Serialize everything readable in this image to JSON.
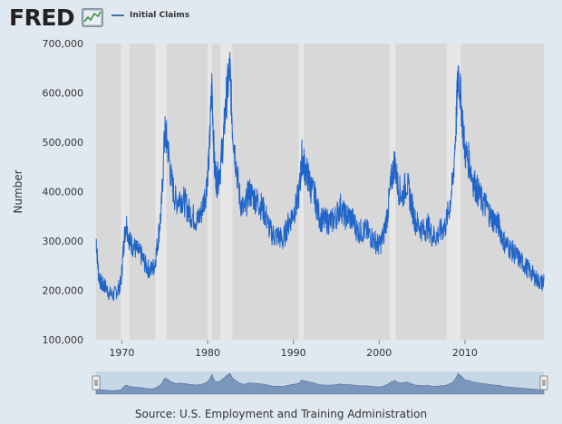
{
  "header": {
    "logo_text": "FRED",
    "legend_label": "Initial Claims"
  },
  "colors": {
    "series": "#1f64c8",
    "plot_bg": "#d8d8d8",
    "recession": "#e6e6e6",
    "page_bg": "#e1e9f0",
    "navigator_fill": "#7b96bb",
    "navigator_bg": "#c8d7e6"
  },
  "source_text": "Source: U.S. Employment and Training Administration",
  "chart_data": {
    "type": "line",
    "title": "",
    "xlabel": "",
    "ylabel": "Number",
    "xlim": [
      1967.0,
      2019.2
    ],
    "ylim": [
      100000,
      700000
    ],
    "y_ticks": [
      100000,
      200000,
      300000,
      400000,
      500000,
      600000,
      700000
    ],
    "y_tick_labels": [
      "100,000",
      "200,000",
      "300,000",
      "400,000",
      "500,000",
      "600,000",
      "700,000"
    ],
    "x_ticks": [
      1970,
      1980,
      1990,
      2000,
      2010
    ],
    "x_tick_labels": [
      "1970",
      "1980",
      "1990",
      "2000",
      "2010"
    ],
    "grid": false,
    "legend_placement": "top-left",
    "recessions": [
      [
        1969.9,
        1970.9
      ],
      [
        1973.9,
        1975.2
      ],
      [
        1980.0,
        1980.5
      ],
      [
        1981.5,
        1982.9
      ],
      [
        1990.6,
        1991.2
      ],
      [
        2001.2,
        2001.9
      ],
      [
        2007.9,
        2009.5
      ]
    ],
    "series": [
      {
        "name": "Initial Claims",
        "x": [
          1967.0,
          1967.3,
          1967.7,
          1968.0,
          1968.5,
          1969.0,
          1969.5,
          1969.9,
          1970.2,
          1970.5,
          1970.9,
          1971.3,
          1971.8,
          1972.3,
          1972.8,
          1973.3,
          1973.8,
          1974.2,
          1974.6,
          1975.0,
          1975.3,
          1975.8,
          1976.3,
          1976.8,
          1977.3,
          1977.8,
          1978.3,
          1978.8,
          1979.3,
          1979.8,
          1980.2,
          1980.5,
          1980.8,
          1981.1,
          1981.5,
          1981.9,
          1982.2,
          1982.6,
          1982.9,
          1983.3,
          1983.8,
          1984.3,
          1984.8,
          1985.3,
          1985.8,
          1986.3,
          1986.8,
          1987.3,
          1987.8,
          1988.3,
          1988.8,
          1989.3,
          1989.8,
          1990.3,
          1990.7,
          1991.0,
          1991.3,
          1991.7,
          1992.0,
          1992.5,
          1993.0,
          1993.5,
          1994.0,
          1994.5,
          1995.0,
          1995.5,
          1996.0,
          1996.5,
          1997.0,
          1997.5,
          1998.0,
          1998.5,
          1999.0,
          1999.5,
          2000.0,
          2000.5,
          2001.0,
          2001.4,
          2001.8,
          2002.2,
          2002.7,
          2003.2,
          2003.7,
          2004.2,
          2004.7,
          2005.2,
          2005.7,
          2006.2,
          2006.7,
          2007.2,
          2007.7,
          2008.2,
          2008.6,
          2009.0,
          2009.2,
          2009.6,
          2010.0,
          2010.5,
          2011.0,
          2011.5,
          2012.0,
          2012.5,
          2013.0,
          2013.5,
          2014.0,
          2014.5,
          2015.0,
          2015.5,
          2016.0,
          2016.5,
          2017.0,
          2017.5,
          2018.0,
          2018.5,
          2019.0,
          2019.2
        ],
        "values": [
          305000,
          230000,
          210000,
          210000,
          195000,
          190000,
          200000,
          215000,
          290000,
          340000,
          300000,
          290000,
          280000,
          270000,
          250000,
          240000,
          250000,
          300000,
          360000,
          520000,
          500000,
          420000,
          380000,
          390000,
          380000,
          360000,
          350000,
          340000,
          360000,
          400000,
          480000,
          620000,
          450000,
          420000,
          450000,
          520000,
          590000,
          650000,
          530000,
          460000,
          380000,
          360000,
          400000,
          390000,
          380000,
          370000,
          350000,
          320000,
          310000,
          310000,
          300000,
          330000,
          350000,
          370000,
          400000,
          470000,
          450000,
          430000,
          410000,
          390000,
          350000,
          340000,
          340000,
          340000,
          350000,
          370000,
          350000,
          350000,
          340000,
          320000,
          320000,
          320000,
          310000,
          300000,
          290000,
          310000,
          360000,
          420000,
          460000,
          410000,
          390000,
          420000,
          380000,
          340000,
          330000,
          320000,
          330000,
          310000,
          310000,
          320000,
          330000,
          370000,
          420000,
          550000,
          650000,
          570000,
          480000,
          460000,
          420000,
          400000,
          380000,
          370000,
          350000,
          340000,
          330000,
          300000,
          290000,
          280000,
          270000,
          260000,
          250000,
          240000,
          230000,
          220000,
          215000,
          220000
        ]
      }
    ]
  }
}
